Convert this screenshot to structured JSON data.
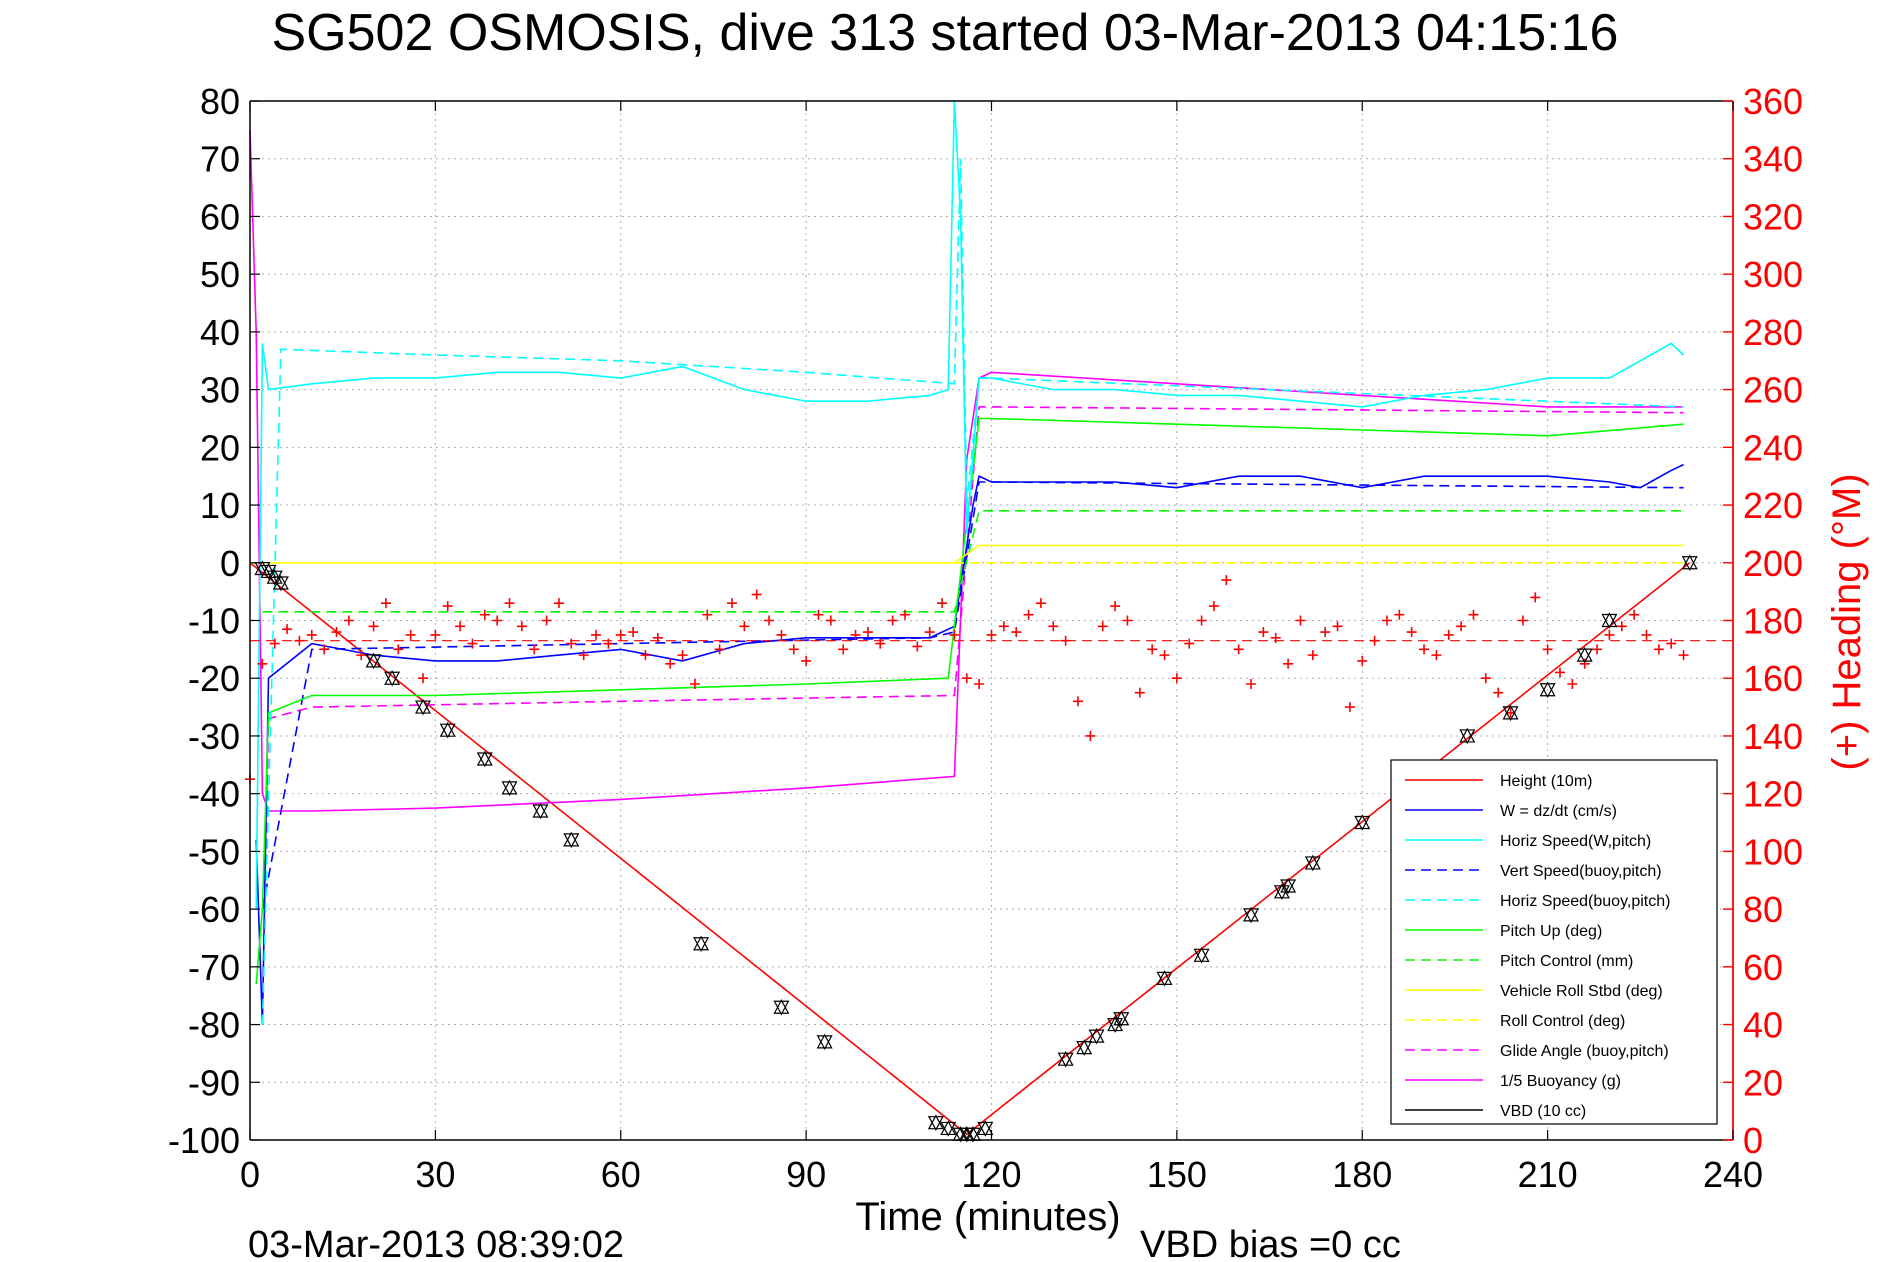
{
  "chart_data": {
    "type": "line",
    "title": "SG502 OSMOSIS, dive 313 started 03-Mar-2013 04:15:16",
    "xlabel": "Time (minutes)",
    "ylabel": "",
    "y2label": "(+) Heading (°M)",
    "footer_left": "03-Mar-2013 08:39:02",
    "footer_right": "VBD bias =0 cc",
    "xlim": [
      0,
      240
    ],
    "ylim": [
      -100,
      80
    ],
    "y2lim": [
      0,
      360
    ],
    "xticks": [
      "0",
      "30",
      "60",
      "90",
      "120",
      "150",
      "180",
      "210",
      "240"
    ],
    "yticks": [
      "80",
      "70",
      "60",
      "50",
      "40",
      "30",
      "20",
      "10",
      "0",
      "-10",
      "-20",
      "-30",
      "-40",
      "-50",
      "-60",
      "-70",
      "-80",
      "-90",
      "-100"
    ],
    "y2ticks": [
      "360",
      "340",
      "320",
      "300",
      "280",
      "260",
      "240",
      "220",
      "200",
      "180",
      "160",
      "140",
      "120",
      "100",
      "80",
      "60",
      "40",
      "20",
      "0"
    ],
    "grid": true,
    "legend_position": "lower-right",
    "colors": {
      "red": "#ff0000",
      "blue": "#0000ff",
      "cyan": "#00ffff",
      "green": "#00ff00",
      "yellow": "#ffff00",
      "magenta": "#ff00ff",
      "black": "#000000"
    },
    "series": [
      {
        "name": "Height (10m)",
        "color": "#ff0000",
        "style": "solid",
        "x": [
          0,
          116,
          233
        ],
        "y": [
          0,
          -99,
          0
        ]
      },
      {
        "name": "W = dz/dt (cm/s)",
        "color": "#0000ff",
        "style": "solid",
        "x": [
          1,
          2,
          3,
          10,
          20,
          30,
          40,
          50,
          60,
          70,
          80,
          90,
          100,
          110,
          114,
          117,
          118,
          120,
          130,
          140,
          150,
          160,
          170,
          180,
          190,
          200,
          210,
          220,
          225,
          230,
          232
        ],
        "y": [
          -48,
          -80,
          -20,
          -14,
          -16,
          -17,
          -17,
          -16,
          -15,
          -17,
          -14,
          -13,
          -13,
          -13,
          -11,
          10,
          15,
          14,
          14,
          14,
          13,
          15,
          15,
          13,
          15,
          15,
          15,
          14,
          13,
          16,
          17
        ]
      },
      {
        "name": "Horiz Speed(W,pitch)",
        "color": "#00ffff",
        "style": "solid",
        "x": [
          1,
          2,
          3,
          10,
          20,
          30,
          40,
          50,
          60,
          70,
          80,
          90,
          100,
          110,
          113,
          114,
          115,
          116,
          118,
          120,
          130,
          140,
          150,
          160,
          170,
          180,
          190,
          200,
          210,
          220,
          225,
          230,
          232
        ],
        "y": [
          -60,
          38,
          30,
          31,
          32,
          32,
          33,
          33,
          32,
          34,
          30,
          28,
          28,
          29,
          30,
          80,
          60,
          5,
          32,
          32,
          30,
          30,
          29,
          29,
          28,
          27,
          29,
          30,
          32,
          32,
          35,
          38,
          36
        ]
      },
      {
        "name": "Vert Speed(buoy,pitch)",
        "color": "#0000ff",
        "style": "dashed",
        "x": [
          2,
          10,
          60,
          110,
          114,
          118,
          120,
          232
        ],
        "y": [
          -60,
          -15,
          -14,
          -13,
          -12,
          14,
          14,
          13
        ]
      },
      {
        "name": "Horiz Speed(buoy,pitch)",
        "color": "#00ffff",
        "style": "dashed",
        "x": [
          2,
          5,
          30,
          60,
          90,
          114,
          115,
          116,
          118,
          120,
          232
        ],
        "y": [
          -80,
          37,
          36,
          35,
          33,
          31,
          70,
          10,
          32,
          32,
          27
        ]
      },
      {
        "name": "Pitch Up (deg)",
        "color": "#00ff00",
        "style": "solid",
        "x": [
          1,
          2,
          3,
          10,
          30,
          60,
          90,
          113,
          118,
          120,
          150,
          180,
          210,
          232
        ],
        "y": [
          -73,
          -60,
          -26,
          -23,
          -23,
          -22,
          -21,
          -20,
          25,
          25,
          24,
          23,
          22,
          24
        ]
      },
      {
        "name": "Pitch Control (mm)",
        "color": "#00ff00",
        "style": "dashed",
        "x": [
          2,
          114,
          118,
          232
        ],
        "y": [
          -8.5,
          -8.5,
          9,
          9
        ]
      },
      {
        "name": "Vehicle Roll Stbd (deg)",
        "color": "#ffff00",
        "style": "solid",
        "x": [
          0,
          5,
          114,
          118,
          120,
          232
        ],
        "y": [
          0,
          0,
          0,
          3,
          3,
          3
        ]
      },
      {
        "name": "Roll Control (deg)",
        "color": "#ffff00",
        "style": "dashed",
        "x": [
          0,
          114,
          232
        ],
        "y": [
          0,
          0,
          0
        ]
      },
      {
        "name": "Glide Angle (buoy,pitch)",
        "color": "#ff00ff",
        "style": "dashed",
        "x": [
          2,
          3,
          10,
          60,
          114,
          118,
          120,
          232
        ],
        "y": [
          -80,
          -27,
          -25,
          -24,
          -23,
          27,
          27,
          26
        ]
      },
      {
        "name": "1/5 Buoyancy (g)",
        "color": "#ff00ff",
        "style": "solid",
        "x": [
          0,
          1,
          2,
          3,
          10,
          30,
          60,
          90,
          114,
          116,
          118,
          120,
          150,
          180,
          210,
          232
        ],
        "y": [
          75,
          40,
          -40,
          -43,
          -43,
          -42.5,
          -41,
          -39,
          -37,
          18,
          32,
          33,
          31,
          29,
          27,
          27
        ]
      },
      {
        "name": "VBD (10 cc)",
        "color": "#000000",
        "style": "solid",
        "x": [
          0,
          1,
          2,
          10,
          60,
          114,
          118,
          120,
          232
        ],
        "y": [
          3,
          -10,
          -17,
          -17,
          -17,
          -16,
          17,
          17,
          17
        ]
      }
    ],
    "heading": {
      "name": "(+) Heading (°M)",
      "color": "#ff0000",
      "marker": "+",
      "axis": "right",
      "x": [
        0,
        2,
        4,
        6,
        8,
        10,
        12,
        14,
        16,
        18,
        20,
        22,
        24,
        26,
        28,
        30,
        32,
        34,
        36,
        38,
        40,
        42,
        44,
        46,
        48,
        50,
        52,
        54,
        56,
        58,
        60,
        62,
        64,
        66,
        68,
        70,
        72,
        74,
        76,
        78,
        80,
        82,
        84,
        86,
        88,
        90,
        92,
        94,
        96,
        98,
        100,
        102,
        104,
        106,
        108,
        110,
        112,
        114,
        116,
        118,
        120,
        122,
        124,
        126,
        128,
        130,
        132,
        134,
        136,
        138,
        140,
        142,
        144,
        146,
        148,
        150,
        152,
        154,
        156,
        158,
        160,
        162,
        164,
        166,
        168,
        170,
        172,
        174,
        176,
        178,
        180,
        182,
        184,
        186,
        188,
        190,
        192,
        194,
        196,
        198,
        200,
        202,
        204,
        206,
        208,
        210,
        212,
        214,
        216,
        218,
        220,
        222,
        224,
        226,
        228,
        230,
        232
      ],
      "y": [
        125,
        165,
        172,
        177,
        173,
        175,
        170,
        176,
        180,
        168,
        178,
        186,
        170,
        175,
        160,
        175,
        185,
        178,
        172,
        182,
        180,
        186,
        178,
        170,
        180,
        186,
        172,
        168,
        175,
        172,
        175,
        176,
        168,
        174,
        165,
        168,
        158,
        182,
        170,
        186,
        178,
        189,
        180,
        175,
        170,
        166,
        182,
        180,
        170,
        175,
        176,
        172,
        180,
        182,
        171,
        176,
        186,
        175,
        160,
        158,
        175,
        178,
        176,
        182,
        186,
        178,
        173,
        152,
        140,
        178,
        185,
        180,
        155,
        170,
        168,
        160,
        172,
        180,
        185,
        194,
        170,
        158,
        176,
        174,
        165,
        180,
        168,
        176,
        178,
        150,
        166,
        173,
        180,
        182,
        176,
        170,
        168,
        175,
        178,
        182,
        160,
        155,
        148,
        180,
        188,
        170,
        162,
        158,
        165,
        170,
        175,
        178,
        182,
        175,
        170,
        172,
        168
      ]
    },
    "depth_markers": {
      "style": "triangles",
      "color": "#000000",
      "x": [
        2,
        3,
        4,
        5,
        20,
        23,
        28,
        32,
        38,
        42,
        47,
        52,
        73,
        86,
        93,
        111,
        113,
        115,
        116,
        117,
        119,
        132,
        135,
        137,
        140,
        141,
        148,
        154,
        162,
        167,
        168,
        172,
        180,
        197,
        204,
        210,
        216,
        220,
        233
      ],
      "y": [
        -1,
        -1.5,
        -2.5,
        -3.5,
        -17,
        -20,
        -25,
        -29,
        -34,
        -39,
        -43,
        -48,
        -66,
        -77,
        -83,
        -97,
        -98,
        -99,
        -99,
        -99,
        -98,
        -86,
        -84,
        -82,
        -80,
        -79,
        -72,
        -68,
        -61,
        -57,
        -56,
        -52,
        -45,
        -30,
        -26,
        -22,
        -16,
        -10,
        0
      ]
    }
  }
}
